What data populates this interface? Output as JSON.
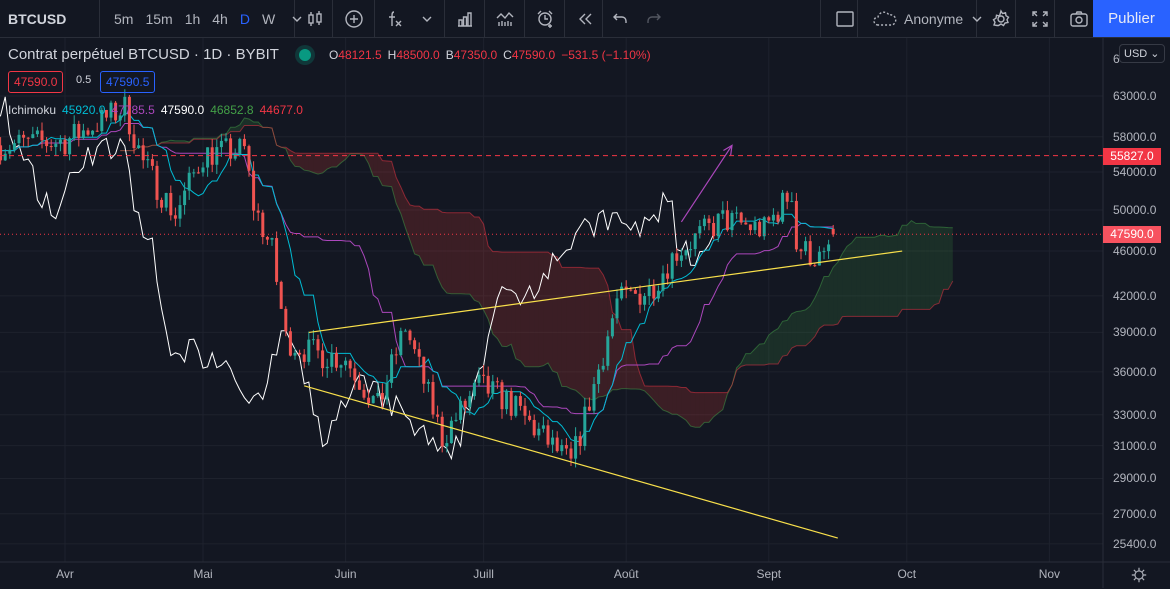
{
  "toolbar": {
    "symbol": "BTCUSD",
    "intervals": [
      "5m",
      "15m",
      "1h",
      "4h",
      "D",
      "W"
    ],
    "active_interval": "D",
    "icons": [
      "chevron-down-icon",
      "candles-icon",
      "plus-circle-icon",
      "fx-icon",
      "chevron-down-icon",
      "bar-chart-icon",
      "replay-chart-icon",
      "alarm-icon",
      "rewind-icon",
      "undo-icon",
      "redo-icon"
    ],
    "user": "Anonyme",
    "publish": "Publier",
    "publish_color": "#2962ff"
  },
  "legend": {
    "title": "Contrat perpétuel BTCUSD · 1D · BYBIT",
    "o_label": "O",
    "o": "48121.5",
    "h_label": "H",
    "h": "48500.0",
    "l_label": "B",
    "l": "47350.0",
    "c_label": "C",
    "c": "47590.0",
    "change": "−531.5 (−1.10%)",
    "bid": "47590.0",
    "spread": "0.5",
    "ask": "47590.5"
  },
  "ichimoku": {
    "name": "Ichimoku",
    "tenkan": "45920.0",
    "kijun": "47785.5",
    "chikou": "47590.0",
    "span_a": "46852.8",
    "span_b": "44677.0",
    "colors": {
      "tenkan": "#00bcd4",
      "kijun": "#ab47bc",
      "chikou": "#ffffff",
      "span_a": "#43a047",
      "span_b": "#f23645"
    }
  },
  "price_axis": {
    "currency": "USD",
    "top_partial": "6",
    "ticks": [
      "63000.0",
      "58000.0",
      "54000.0",
      "50000.0",
      "46000.0",
      "42000.0",
      "39000.0",
      "36000.0",
      "33000.0",
      "31000.0",
      "29000.0",
      "27000.0",
      "25400.0"
    ],
    "scale": "log",
    "tags": [
      {
        "value": "55827.0",
        "color": "#f23645"
      },
      {
        "value": "47590.0",
        "color": "#f7525f"
      }
    ]
  },
  "time_axis": {
    "labels": [
      "Avr",
      "Mai",
      "Juin",
      "Juill",
      "Août",
      "Sept",
      "Oct",
      "Nov"
    ]
  },
  "chart_data": {
    "type": "candlestick",
    "symbol": "BTCUSD",
    "timeframe": "1D",
    "exchange": "BYBIT",
    "y_scale": "log",
    "ylim": [
      25000,
      65000
    ],
    "xlim": [
      "2021-03-18",
      "2021-11-30"
    ],
    "colors": {
      "up": "#26a69a",
      "down": "#ef5350"
    },
    "approx_close_path": [
      [
        "2021-03-18",
        57000
      ],
      [
        "2021-04-01",
        57500
      ],
      [
        "2021-04-14",
        61500
      ],
      [
        "2021-04-18",
        55000
      ],
      [
        "2021-04-25",
        49500
      ],
      [
        "2021-05-01",
        56000
      ],
      [
        "2021-05-10",
        56500
      ],
      [
        "2021-05-12",
        50500
      ],
      [
        "2021-05-16",
        46000
      ],
      [
        "2021-05-19",
        38500
      ],
      [
        "2021-05-24",
        37500
      ],
      [
        "2021-06-01",
        37000
      ],
      [
        "2021-06-08",
        33500
      ],
      [
        "2021-06-14",
        39500
      ],
      [
        "2021-06-22",
        31500
      ],
      [
        "2021-06-30",
        35000
      ],
      [
        "2021-07-06",
        34000
      ],
      [
        "2021-07-20",
        29800
      ],
      [
        "2021-07-25",
        35000
      ],
      [
        "2021-07-30",
        41500
      ],
      [
        "2021-08-06",
        42500
      ],
      [
        "2021-08-12",
        46000
      ],
      [
        "2021-08-22",
        49000
      ],
      [
        "2021-08-31",
        48000
      ],
      [
        "2021-09-06",
        52000
      ],
      [
        "2021-09-07",
        46500
      ],
      [
        "2021-09-13",
        45000
      ],
      [
        "2021-09-15",
        47590
      ]
    ],
    "horizontal_lines": [
      {
        "value": 55827,
        "style": "dashed",
        "color": "#f23645"
      },
      {
        "value": 47590,
        "style": "dotted",
        "color": "#f23645"
      }
    ],
    "trend_lines": [
      {
        "from": [
          "2021-05-24",
          39000
        ],
        "to": [
          "2021-09-30",
          46000
        ],
        "color": "#f9e04b"
      },
      {
        "from": [
          "2021-05-23",
          35000
        ],
        "to": [
          "2021-09-16",
          25700
        ],
        "color": "#f9e04b"
      }
    ],
    "arrow": {
      "from": [
        "2021-08-13",
        48800
      ],
      "to": [
        "2021-08-24",
        57000
      ],
      "color": "#ab47bc"
    }
  }
}
